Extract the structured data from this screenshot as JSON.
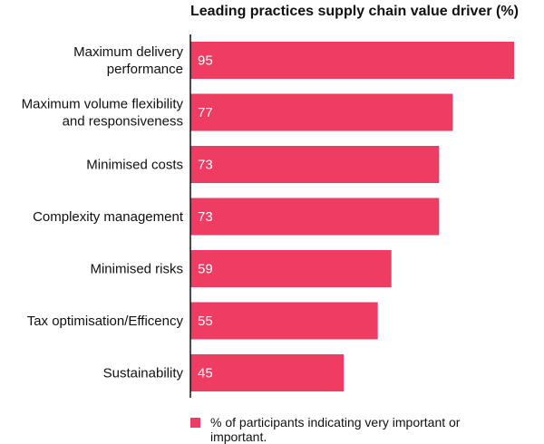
{
  "chart_data": {
    "type": "bar",
    "orientation": "horizontal",
    "title": "Leading practices supply chain value driver (%)",
    "categories": [
      [
        "Maximum delivery",
        "performance"
      ],
      [
        "Maximum volume flexibility",
        "and responsiveness"
      ],
      [
        "Minimised costs"
      ],
      [
        "Complexity management"
      ],
      [
        "Minimised risks"
      ],
      [
        "Tax optimisation/Efficency"
      ],
      [
        "Sustainability"
      ]
    ],
    "series": [
      {
        "name": "% of participants indicating very important or important.",
        "values": [
          95,
          77,
          73,
          73,
          59,
          55,
          45
        ]
      }
    ],
    "value_labels": [
      "95",
      "77",
      "73",
      "73",
      "59",
      "55",
      "45"
    ],
    "xlim": [
      0,
      95
    ],
    "grid": false,
    "legend_position": "bottom"
  },
  "colors": {
    "bar": "#ee3c63",
    "axis": "#111111"
  }
}
